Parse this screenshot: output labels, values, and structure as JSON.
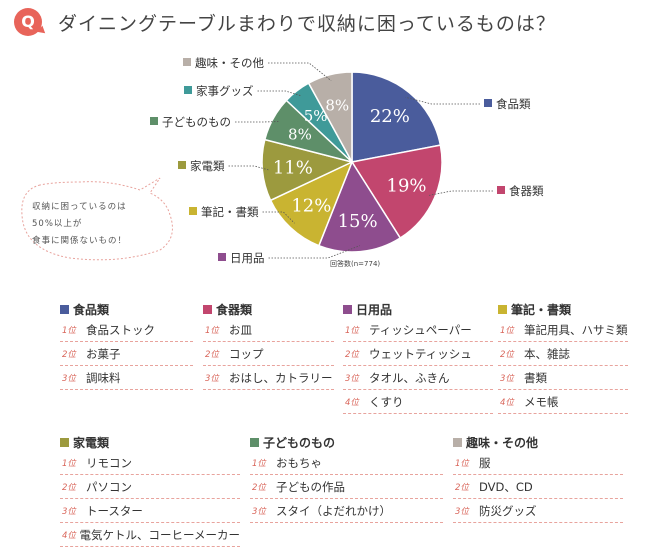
{
  "title_badge": "Q",
  "title": "ダイニングテーブルまわりで収納に困っているものは？",
  "note": {
    "lines": [
      "収納に困っているのは",
      "50%以上が",
      "食事に関係ないもの！"
    ]
  },
  "sample_note": "回答数(n=774)",
  "chart_data": {
    "type": "pie",
    "slices": [
      {
        "label": "食品類",
        "value": 22,
        "display": "22%",
        "color": "#4a5c9c"
      },
      {
        "label": "食器類",
        "value": 19,
        "display": "19%",
        "color": "#c2466e"
      },
      {
        "label": "日用品",
        "value": 15,
        "display": "15%",
        "color": "#8e4d8e"
      },
      {
        "label": "筆記・書類",
        "value": 12,
        "display": "12%",
        "color": "#c9b431"
      },
      {
        "label": "家電類",
        "value": 11,
        "display": "11%",
        "color": "#9c9a3e"
      },
      {
        "label": "子どものもの",
        "value": 8,
        "display": "8%",
        "color": "#5e8f69"
      },
      {
        "label": "家事グッズ",
        "value": 5,
        "display": "5%",
        "color": "#3f9a99"
      },
      {
        "label": "趣味・その他",
        "value": 8,
        "display": "8%",
        "color": "#b8afa8"
      }
    ],
    "legend_placement": "around"
  },
  "categories": [
    {
      "name": "食品類",
      "color": "#4a5c9c",
      "ranks": [
        {
          "rank": "1位",
          "item": "食品ストック"
        },
        {
          "rank": "2位",
          "item": "お菓子"
        },
        {
          "rank": "3位",
          "item": "調味料"
        }
      ]
    },
    {
      "name": "食器類",
      "color": "#c2466e",
      "ranks": [
        {
          "rank": "1位",
          "item": "お皿"
        },
        {
          "rank": "2位",
          "item": "コップ"
        },
        {
          "rank": "3位",
          "item": "おはし、カトラリー"
        }
      ]
    },
    {
      "name": "日用品",
      "color": "#8e4d8e",
      "ranks": [
        {
          "rank": "1位",
          "item": "ティッシュペーパー"
        },
        {
          "rank": "2位",
          "item": "ウェットティッシュ"
        },
        {
          "rank": "3位",
          "item": "タオル、ふきん"
        },
        {
          "rank": "4位",
          "item": "くすり"
        }
      ]
    },
    {
      "name": "筆記・書類",
      "color": "#c9b431",
      "ranks": [
        {
          "rank": "1位",
          "item": "筆記用具、ハサミ類"
        },
        {
          "rank": "2位",
          "item": "本、雑誌"
        },
        {
          "rank": "3位",
          "item": "書類"
        },
        {
          "rank": "4位",
          "item": "メモ帳"
        }
      ]
    },
    {
      "name": "家電類",
      "color": "#9c9a3e",
      "ranks": [
        {
          "rank": "1位",
          "item": "リモコン"
        },
        {
          "rank": "2位",
          "item": "パソコン"
        },
        {
          "rank": "3位",
          "item": "トースター"
        },
        {
          "rank": "4位",
          "item": "電気ケトル、コーヒーメーカー"
        }
      ]
    },
    {
      "name": "子どものもの",
      "color": "#5e8f69",
      "ranks": [
        {
          "rank": "1位",
          "item": "おもちゃ"
        },
        {
          "rank": "2位",
          "item": "子どもの作品"
        },
        {
          "rank": "3位",
          "item": "スタイ（よだれかけ）"
        }
      ]
    },
    {
      "name": "趣味・その他",
      "color": "#b8afa8",
      "ranks": [
        {
          "rank": "1位",
          "item": "服"
        },
        {
          "rank": "2位",
          "item": "DVD、CD"
        },
        {
          "rank": "3位",
          "item": "防災グッズ"
        }
      ]
    }
  ]
}
